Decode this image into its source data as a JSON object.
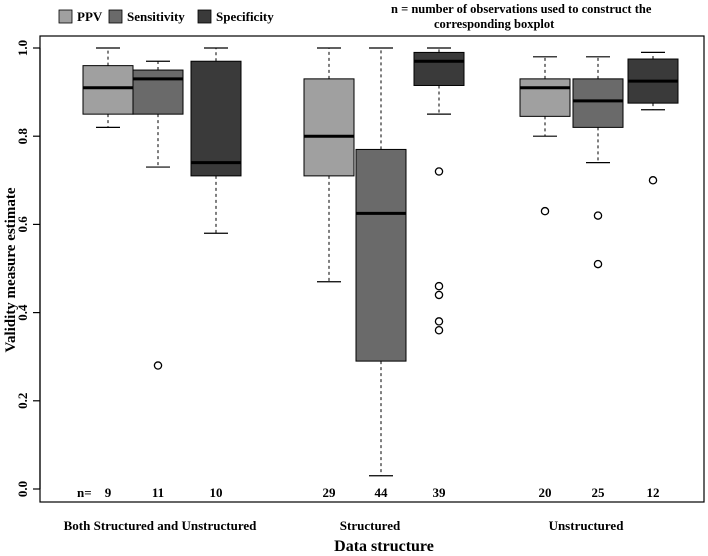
{
  "chart_data": {
    "type": "boxplot",
    "title": "",
    "xlabel": "Data structure",
    "ylabel": "Validity measure estimate",
    "ylim": [
      0,
      1.0
    ],
    "yticks": [
      "0.0",
      "0.2",
      "0.4",
      "0.6",
      "0.8",
      "1.0"
    ],
    "categories": [
      "Both Structured and Unstructured",
      "Structured",
      "Unstructured"
    ],
    "legend": {
      "position": "top-left",
      "entries": [
        {
          "name": "PPV",
          "color": "#a0a0a0"
        },
        {
          "name": "Sensitivity",
          "color": "#6a6a6a"
        },
        {
          "name": "Specificity",
          "color": "#3a3a3a"
        }
      ]
    },
    "note": {
      "line1": "n = number of observations used to construct the",
      "line2": "corresponding boxplot"
    },
    "n_prefix": "n=",
    "groups": [
      {
        "category": "Both Structured and Unstructured",
        "boxes": [
          {
            "series": "PPV",
            "n": "9",
            "whisker_low": 0.82,
            "q1": 0.85,
            "median": 0.91,
            "q3": 0.96,
            "whisker_high": 1.0,
            "outliers": []
          },
          {
            "series": "Sensitivity",
            "n": "11",
            "whisker_low": 0.73,
            "q1": 0.85,
            "median": 0.93,
            "q3": 0.95,
            "whisker_high": 0.97,
            "outliers": [
              0.28
            ]
          },
          {
            "series": "Specificity",
            "n": "10",
            "whisker_low": 0.58,
            "q1": 0.71,
            "median": 0.74,
            "q3": 0.97,
            "whisker_high": 1.0,
            "outliers": []
          }
        ]
      },
      {
        "category": "Structured",
        "boxes": [
          {
            "series": "PPV",
            "n": "29",
            "whisker_low": 0.47,
            "q1": 0.71,
            "median": 0.8,
            "q3": 0.93,
            "whisker_high": 1.0,
            "outliers": []
          },
          {
            "series": "Sensitivity",
            "n": "44",
            "whisker_low": 0.03,
            "q1": 0.29,
            "median": 0.625,
            "q3": 0.77,
            "whisker_high": 1.0,
            "outliers": []
          },
          {
            "series": "Specificity",
            "n": "39",
            "whisker_low": 0.85,
            "q1": 0.915,
            "median": 0.97,
            "q3": 0.99,
            "whisker_high": 1.0,
            "outliers": [
              0.72,
              0.46,
              0.44,
              0.38,
              0.36
            ]
          }
        ]
      },
      {
        "category": "Unstructured",
        "boxes": [
          {
            "series": "PPV",
            "n": "20",
            "whisker_low": 0.8,
            "q1": 0.845,
            "median": 0.91,
            "q3": 0.93,
            "whisker_high": 0.98,
            "outliers": [
              0.63
            ]
          },
          {
            "series": "Sensitivity",
            "n": "25",
            "whisker_low": 0.74,
            "q1": 0.82,
            "median": 0.88,
            "q3": 0.93,
            "whisker_high": 0.98,
            "outliers": [
              0.62,
              0.51
            ]
          },
          {
            "series": "Specificity",
            "n": "12",
            "whisker_low": 0.86,
            "q1": 0.875,
            "median": 0.925,
            "q3": 0.975,
            "whisker_high": 0.99,
            "outliers": [
              0.7
            ]
          }
        ]
      }
    ]
  }
}
